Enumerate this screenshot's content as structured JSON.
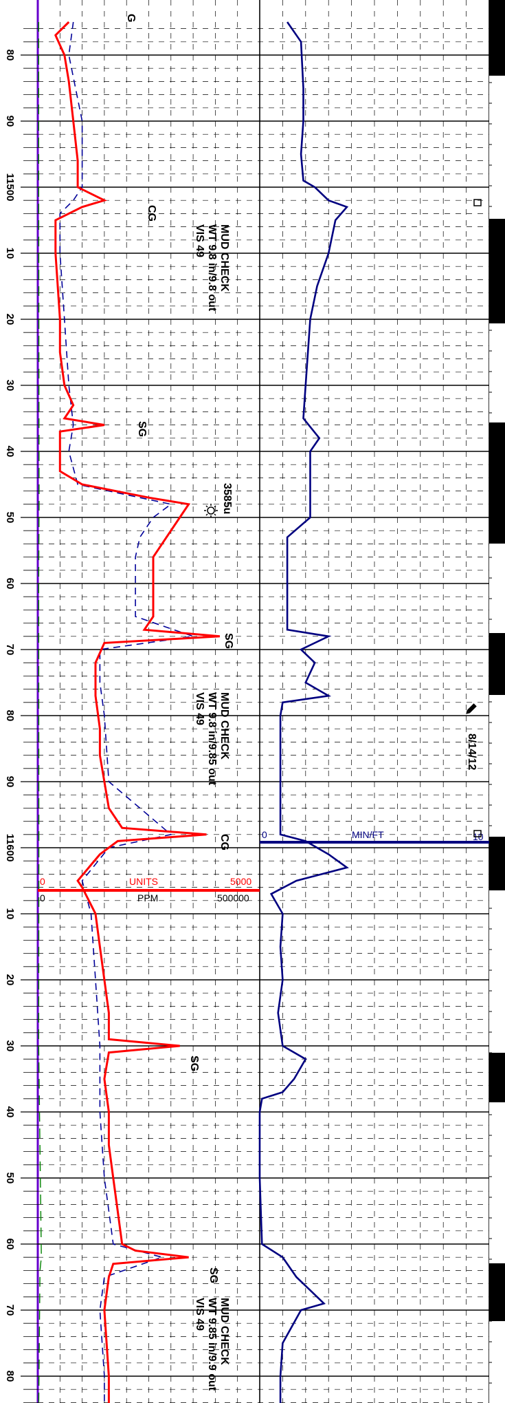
{
  "log": {
    "depth_labels": [
      "80",
      "90",
      "11500",
      "10",
      "20",
      "30",
      "40",
      "50",
      "60",
      "70",
      "80",
      "90",
      "11600",
      "10",
      "20",
      "30",
      "40",
      "50",
      "60",
      "70",
      "80"
    ],
    "gas_annotations": [
      "G",
      "CG",
      "SG",
      "3585u",
      "SG",
      "CG",
      "SG",
      "SG"
    ],
    "mud_checks": [
      {
        "title": "MUD CHECK",
        "wt": "WT 9.8 in/9.8 out",
        "vis": "VIS 49"
      },
      {
        "title": "MUD CHECK",
        "wt": "WT 9.8 in/9.85 out",
        "vis": "VIS 49"
      },
      {
        "title": "MUD CHECK",
        "wt": "WT 9.85 in/9.9 out",
        "vis": "VIS 49"
      }
    ],
    "date": "8/14/12",
    "rop_scale": {
      "left": "0",
      "label": "MIN/FT",
      "right": "10"
    },
    "gas_scale": {
      "units_left": "0",
      "units_label": "UNITS",
      "units_right": "5000",
      "ppm_left": "0",
      "ppm_label": "PPM",
      "ppm_right": "500000"
    }
  },
  "colors": {
    "total_gas": "#ff0000",
    "chromatograph": "#000099",
    "rate_of_penetration": "#000080",
    "gamma": "#008000",
    "depth_track_line": "#6600cc",
    "grid": "#000000"
  },
  "chart_data": {
    "type": "line",
    "y_axis": "depth (ft)",
    "depth_range": [
      11475,
      11685
    ],
    "series": [
      {
        "values": [
          [
            11475,
            7
          ],
          [
            11477,
            4
          ],
          [
            11480,
            6
          ],
          [
            11484,
            7
          ],
          [
            11490,
            8
          ],
          [
            11496,
            9
          ],
          [
            11500,
            9
          ],
          [
            11502,
            15
          ],
          [
            11503,
            10
          ],
          [
            11505,
            4
          ],
          [
            11510,
            4
          ],
          [
            11520,
            5
          ],
          [
            11525,
            5
          ],
          [
            11530,
            6
          ],
          [
            11533,
            8
          ],
          [
            11535,
            6
          ],
          [
            11536,
            15
          ],
          [
            11537,
            5
          ],
          [
            11540,
            5
          ],
          [
            11543,
            5
          ],
          [
            11545,
            10
          ],
          [
            11547,
            25
          ],
          [
            11548,
            34
          ],
          [
            11550,
            32
          ],
          [
            11553,
            29
          ],
          [
            11556,
            26
          ],
          [
            11560,
            26
          ],
          [
            11565,
            26
          ],
          [
            11567,
            24
          ],
          [
            11568,
            41
          ],
          [
            11569,
            15
          ],
          [
            11572,
            13
          ],
          [
            11577,
            13
          ],
          [
            11582,
            14
          ],
          [
            11586,
            14
          ],
          [
            11590,
            15
          ],
          [
            11594,
            16
          ],
          [
            11597,
            19
          ],
          [
            11598,
            38
          ],
          [
            11599,
            18
          ],
          [
            11601,
            14
          ],
          [
            11605,
            9
          ],
          [
            11606,
            10
          ],
          [
            11610,
            13
          ],
          [
            11615,
            14
          ],
          [
            11620,
            15
          ],
          [
            11625,
            16
          ],
          [
            11629,
            16
          ],
          [
            11630,
            32
          ],
          [
            11631,
            16
          ],
          [
            11635,
            15
          ],
          [
            11640,
            16
          ],
          [
            11645,
            16
          ],
          [
            11650,
            17
          ],
          [
            11655,
            18
          ],
          [
            11660,
            19
          ],
          [
            11661,
            22
          ],
          [
            11662,
            34
          ],
          [
            11663,
            17
          ],
          [
            11665,
            16
          ],
          [
            11670,
            15
          ],
          [
            11680,
            16
          ],
          [
            11685,
            16
          ]
        ]
      },
      {
        "values": [
          [
            11475,
            8
          ],
          [
            11480,
            7
          ],
          [
            11490,
            10
          ],
          [
            11500,
            10
          ],
          [
            11502,
            8
          ],
          [
            11504,
            5
          ],
          [
            11510,
            5
          ],
          [
            11520,
            6
          ],
          [
            11530,
            7
          ],
          [
            11536,
            8
          ],
          [
            11540,
            7
          ],
          [
            11545,
            9
          ],
          [
            11548,
            30
          ],
          [
            11550,
            26
          ],
          [
            11553,
            23
          ],
          [
            11556,
            22
          ],
          [
            11560,
            22
          ],
          [
            11565,
            22
          ],
          [
            11568,
            35
          ],
          [
            11570,
            14
          ],
          [
            11575,
            14
          ],
          [
            11580,
            15
          ],
          [
            11590,
            16
          ],
          [
            11598,
            30
          ],
          [
            11600,
            16
          ],
          [
            11605,
            10
          ],
          [
            11610,
            12
          ],
          [
            11620,
            13
          ],
          [
            11630,
            14
          ],
          [
            11635,
            14
          ],
          [
            11640,
            14
          ],
          [
            11650,
            15
          ],
          [
            11655,
            16
          ],
          [
            11660,
            17
          ],
          [
            11662,
            28
          ],
          [
            11665,
            15
          ],
          [
            11670,
            14
          ],
          [
            11680,
            15
          ],
          [
            11685,
            15
          ]
        ]
      },
      {
        "values": [
          [
            11475,
            1.2
          ],
          [
            11478,
            1.8
          ],
          [
            11485,
            1.9
          ],
          [
            11490,
            1.9
          ],
          [
            11495,
            1.8
          ],
          [
            11499,
            1.9
          ],
          [
            11500,
            2.4
          ],
          [
            11502,
            3.0
          ],
          [
            11503,
            3.8
          ],
          [
            11505,
            3.3
          ],
          [
            11510,
            3.0
          ],
          [
            11515,
            2.5
          ],
          [
            11520,
            2.2
          ],
          [
            11530,
            2.0
          ],
          [
            11535,
            1.9
          ],
          [
            11538,
            2.6
          ],
          [
            11540,
            2.2
          ],
          [
            11545,
            2.2
          ],
          [
            11550,
            2.2
          ],
          [
            11553,
            1.2
          ],
          [
            11556,
            1.2
          ],
          [
            11560,
            1.2
          ],
          [
            11565,
            1.2
          ],
          [
            11567,
            1.2
          ],
          [
            11568,
            3.0
          ],
          [
            11570,
            1.8
          ],
          [
            11572,
            2.4
          ],
          [
            11575,
            2.0
          ],
          [
            11577,
            3.0
          ],
          [
            11578,
            1.0
          ],
          [
            11580,
            0.9
          ],
          [
            11590,
            0.9
          ],
          [
            11598,
            0.9
          ],
          [
            11599,
            2.0
          ],
          [
            11601,
            3.0
          ],
          [
            11603,
            3.8
          ],
          [
            11605,
            1.6
          ],
          [
            11607,
            0.5
          ],
          [
            11610,
            1.0
          ],
          [
            11615,
            0.9
          ],
          [
            11620,
            1.0
          ],
          [
            11625,
            0.8
          ],
          [
            11630,
            1.0
          ],
          [
            11632,
            2.0
          ],
          [
            11635,
            1.5
          ],
          [
            11637,
            1.0
          ],
          [
            11638,
            0.1
          ],
          [
            11640,
            0.0
          ],
          [
            11650,
            0.0
          ],
          [
            11660,
            0.1
          ],
          [
            11662,
            1.0
          ],
          [
            11665,
            1.6
          ],
          [
            11667,
            2.2
          ],
          [
            11669,
            2.8
          ],
          [
            11670,
            1.8
          ],
          [
            11675,
            1.0
          ],
          [
            11680,
            0.9
          ],
          [
            11685,
            0.9
          ]
        ]
      },
      {
        "values": [
          [
            11475,
            0.1
          ],
          [
            11490,
            0.1
          ],
          [
            11500,
            0.1
          ],
          [
            11548,
            0.15
          ],
          [
            11560,
            0.1
          ],
          [
            11600,
            0.12
          ],
          [
            11630,
            0.1
          ],
          [
            11662,
            0.4
          ],
          [
            11664,
            0.25
          ],
          [
            11685,
            0.1
          ]
        ]
      }
    ]
  }
}
